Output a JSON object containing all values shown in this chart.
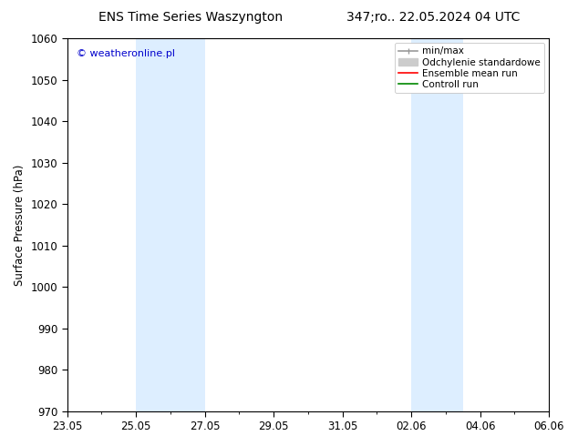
{
  "title_left": "ENS Time Series Waszyngton",
  "title_right": "347;ro.. 22.05.2024 04 UTC",
  "ylabel": "Surface Pressure (hPa)",
  "ylim": [
    970,
    1060
  ],
  "yticks": [
    970,
    980,
    990,
    1000,
    1010,
    1020,
    1030,
    1040,
    1050,
    1060
  ],
  "xtick_labels": [
    "23.05",
    "25.05",
    "27.05",
    "29.05",
    "31.05",
    "02.06",
    "04.06",
    "06.06"
  ],
  "xtick_positions": [
    0,
    2,
    4,
    6,
    8,
    10,
    12,
    14
  ],
  "shaded_bands": [
    {
      "x_start": 2,
      "x_end": 4
    },
    {
      "x_start": 10,
      "x_end": 11.5
    }
  ],
  "shade_color": "#ddeeff",
  "background_color": "#ffffff",
  "watermark_text": "© weatheronline.pl",
  "watermark_color": "#0000cc",
  "legend_items": [
    {
      "label": "min/max",
      "color": "#999999",
      "linewidth": 1.2,
      "style": "-"
    },
    {
      "label": "Odchylenie standardowe",
      "color": "#cccccc",
      "linewidth": 8,
      "style": "-"
    },
    {
      "label": "Ensemble mean run",
      "color": "#ff0000",
      "linewidth": 1.2,
      "style": "-"
    },
    {
      "label": "Controll run",
      "color": "#008800",
      "linewidth": 1.2,
      "style": "-"
    }
  ],
  "grid_color": "#cccccc",
  "title_fontsize": 10,
  "axis_fontsize": 8.5,
  "tick_fontsize": 8.5,
  "legend_fontsize": 7.5
}
